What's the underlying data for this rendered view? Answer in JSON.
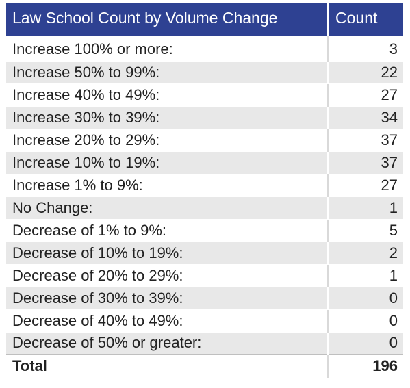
{
  "header": {
    "title": "Law School Count by Volume Change",
    "count": "Count"
  },
  "rows": [
    {
      "label": "Increase 100% or more:",
      "count": "3"
    },
    {
      "label": "Increase 50% to 99%:",
      "count": "22"
    },
    {
      "label": "Increase 40% to 49%:",
      "count": "27"
    },
    {
      "label": "Increase 30% to 39%:",
      "count": "34"
    },
    {
      "label": "Increase 20% to 29%:",
      "count": "37"
    },
    {
      "label": "Increase 10% to 19%:",
      "count": "37"
    },
    {
      "label": "Increase 1% to 9%:",
      "count": "27"
    },
    {
      "label": "No Change:",
      "count": "1"
    },
    {
      "label": "Decrease of 1% to 9%:",
      "count": "5"
    },
    {
      "label": "Decrease of 10% to 19%:",
      "count": "2"
    },
    {
      "label": "Decrease of 20% to 29%:",
      "count": "1"
    },
    {
      "label": "Decrease of 30% to 39%:",
      "count": "0"
    },
    {
      "label": "Decrease of 40% to 49%:",
      "count": "0"
    },
    {
      "label": "Decrease of 50% or greater:",
      "count": "0"
    }
  ],
  "total": {
    "label": "Total",
    "count": "196"
  },
  "colors": {
    "header_bg": "#2e4192",
    "stripe": "#e8e8e8"
  }
}
